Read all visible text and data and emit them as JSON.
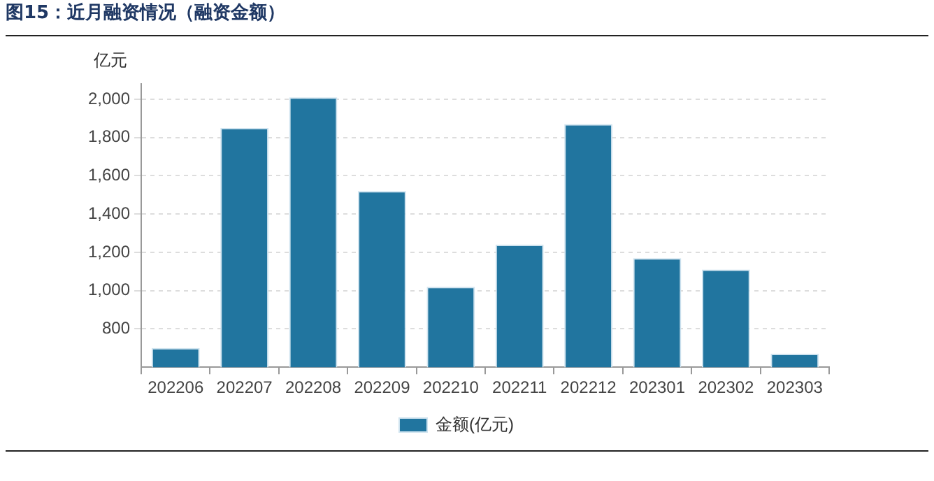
{
  "chart_data": {
    "type": "bar",
    "title": "图15：近月融资情况（融资金额）",
    "ylabel": "亿元",
    "categories": [
      "202206",
      "202207",
      "202208",
      "202209",
      "202210",
      "202211",
      "202212",
      "202301",
      "202302",
      "202303"
    ],
    "series": [
      {
        "name": "金额(亿元)",
        "color": "#21759f",
        "values": [
          700,
          1850,
          2010,
          1520,
          1020,
          1240,
          1870,
          1170,
          1110,
          670
        ]
      }
    ],
    "ylim": [
      600,
      2080
    ],
    "yticks": [
      800,
      {
        "value": 1000,
        "label": "1,000"
      },
      {
        "value": 1200,
        "label": "1,200"
      },
      {
        "value": 1400,
        "label": "1,400"
      },
      {
        "value": 1600,
        "label": "1,600"
      },
      {
        "value": 1800,
        "label": "1,800"
      },
      {
        "value": 2000,
        "label": "2,000"
      }
    ],
    "grid": "y",
    "legend": "bottom"
  }
}
